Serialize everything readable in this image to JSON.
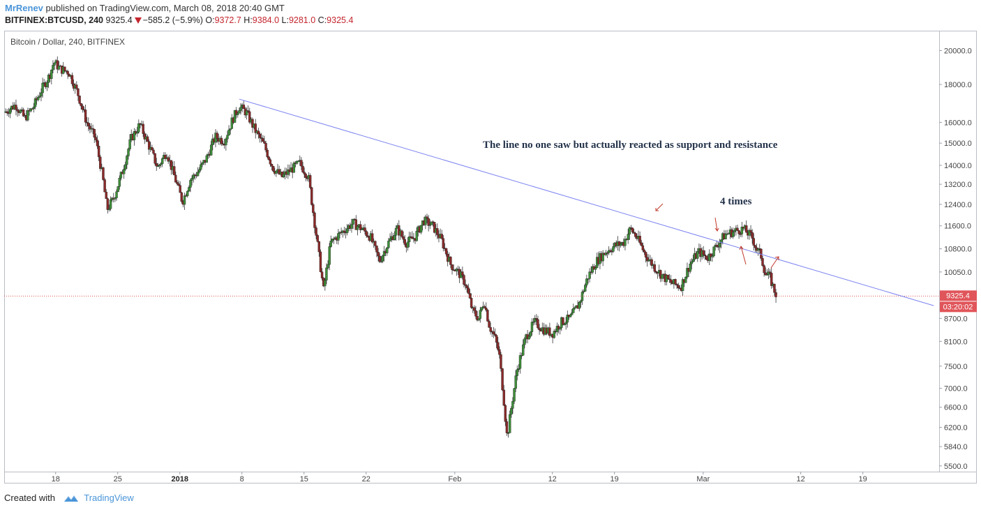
{
  "header": {
    "author": "MrRenev",
    "published_text": "published on TradingView.com, March 08, 2018 20:40 GMT",
    "symbol": "BITFINEX:BTCUSD, 240",
    "last": "9325.4",
    "change": "−585.2 (−5.9%)",
    "o_label": "O:",
    "o_value": "9372.7",
    "h_label": "H:",
    "h_value": "9384.0",
    "l_label": "L:",
    "l_value": "9281.0",
    "c_label": "C:",
    "c_value": "9325.4"
  },
  "footer": {
    "created_with": "Created with",
    "brand": "TradingView"
  },
  "colors": {
    "up_candle": "#3f8f3a",
    "down_candle": "#8b2a2a",
    "trend_line": "#7b83f0",
    "price_line": "#d9534f",
    "price_label_bg": "#e0555a",
    "arrow": "#c0392b",
    "author": "#4a95d9"
  },
  "chart_data": {
    "type": "candlestick",
    "series_title": "Bitcoin / Dollar, 240, BITFINEX",
    "y_scale": "log",
    "ylim": [
      5450,
      21000
    ],
    "y_ticks": [
      "20000.0",
      "18000.0",
      "16000.0",
      "15000.0",
      "14000.0",
      "13200.0",
      "12400.0",
      "11600.0",
      "10800.0",
      "10050.0",
      "8700.0",
      "8100.0",
      "7500.0",
      "7000.0",
      "6600.0",
      "6200.0",
      "5840.0",
      "5500.0"
    ],
    "x_ticks": [
      {
        "label": "18",
        "bold": false,
        "day": 18
      },
      {
        "label": "25",
        "bold": false,
        "day": 25
      },
      {
        "label": "2018",
        "bold": true,
        "day": 32
      },
      {
        "label": "8",
        "bold": false,
        "day": 39
      },
      {
        "label": "15",
        "bold": false,
        "day": 46
      },
      {
        "label": "22",
        "bold": false,
        "day": 53
      },
      {
        "label": "Feb",
        "bold": false,
        "day": 63
      },
      {
        "label": "12",
        "bold": false,
        "day": 74
      },
      {
        "label": "19",
        "bold": false,
        "day": 81
      },
      {
        "label": "Mar",
        "bold": false,
        "day": 91
      },
      {
        "label": "12",
        "bold": false,
        "day": 102
      },
      {
        "label": "19",
        "bold": false,
        "day": 109
      }
    ],
    "x_range_days": [
      12.2,
      117.6
    ],
    "price_path": [
      [
        12.2,
        16500
      ],
      [
        13.5,
        16900
      ],
      [
        14.5,
        16200
      ],
      [
        15.5,
        16800
      ],
      [
        16.5,
        17800
      ],
      [
        17.3,
        18500
      ],
      [
        17.8,
        19300
      ],
      [
        18.5,
        18900
      ],
      [
        19.5,
        18700
      ],
      [
        20.5,
        17500
      ],
      [
        21.5,
        16000
      ],
      [
        22.5,
        15200
      ],
      [
        23.3,
        13500
      ],
      [
        23.8,
        12200
      ],
      [
        24.5,
        12600
      ],
      [
        25.5,
        13700
      ],
      [
        26.5,
        15200
      ],
      [
        27.5,
        15900
      ],
      [
        28.5,
        14900
      ],
      [
        29.5,
        13900
      ],
      [
        30.5,
        14600
      ],
      [
        31.5,
        13400
      ],
      [
        32.3,
        12500
      ],
      [
        33.2,
        13400
      ],
      [
        34,
        13700
      ],
      [
        35,
        14300
      ],
      [
        36,
        15300
      ],
      [
        37,
        15100
      ],
      [
        38,
        16200
      ],
      [
        38.7,
        16800
      ],
      [
        39.5,
        16500
      ],
      [
        40.5,
        15600
      ],
      [
        41.5,
        14900
      ],
      [
        42.5,
        13900
      ],
      [
        43.5,
        13500
      ],
      [
        44.5,
        13800
      ],
      [
        45.5,
        14100
      ],
      [
        46.5,
        13500
      ],
      [
        47,
        12200
      ],
      [
        47.5,
        11000
      ],
      [
        48.2,
        9500
      ],
      [
        49,
        11000
      ],
      [
        50,
        11300
      ],
      [
        51.5,
        11700
      ],
      [
        52.5,
        11500
      ],
      [
        53.5,
        11200
      ],
      [
        54.5,
        10400
      ],
      [
        55.5,
        11000
      ],
      [
        56.5,
        11500
      ],
      [
        57.5,
        11000
      ],
      [
        58.5,
        11200
      ],
      [
        59.5,
        11800
      ],
      [
        60.5,
        11600
      ],
      [
        61.5,
        11100
      ],
      [
        62.5,
        10300
      ],
      [
        63.5,
        10000
      ],
      [
        64.2,
        9700
      ],
      [
        65,
        8900
      ],
      [
        65.7,
        8700
      ],
      [
        66.3,
        9200
      ],
      [
        66.9,
        8500
      ],
      [
        67.5,
        8200
      ],
      [
        68,
        7800
      ],
      [
        68.5,
        6800
      ],
      [
        68.9,
        6000
      ],
      [
        69.3,
        6500
      ],
      [
        70,
        7400
      ],
      [
        71,
        8200
      ],
      [
        72,
        8600
      ],
      [
        73,
        8400
      ],
      [
        74,
        8300
      ],
      [
        75,
        8600
      ],
      [
        76,
        8700
      ],
      [
        77,
        9100
      ],
      [
        78,
        9900
      ],
      [
        79,
        10400
      ],
      [
        80,
        10700
      ],
      [
        81,
        10900
      ],
      [
        82,
        11000
      ],
      [
        82.8,
        11500
      ],
      [
        83.5,
        11200
      ],
      [
        84.5,
        10600
      ],
      [
        85.5,
        10200
      ],
      [
        86.5,
        9900
      ],
      [
        87.5,
        9700
      ],
      [
        88.5,
        9600
      ],
      [
        89.5,
        10300
      ],
      [
        90.5,
        10700
      ],
      [
        91.5,
        10500
      ],
      [
        92.5,
        10900
      ],
      [
        93.5,
        11300
      ],
      [
        94.5,
        11400
      ],
      [
        95.5,
        11500
      ],
      [
        96.5,
        11200
      ],
      [
        97,
        10800
      ],
      [
        97.5,
        10600
      ],
      [
        98,
        10000
      ],
      [
        98.5,
        9900
      ],
      [
        99,
        9500
      ],
      [
        99.3,
        9325
      ]
    ],
    "trend_line": {
      "start": {
        "day": 38.7,
        "price": 17200
      },
      "end": {
        "day": 117.0,
        "price": 9050
      }
    },
    "current_price_label": "9325.4",
    "countdown_label": "03:20:02",
    "annotations": [
      {
        "text": "The line no one saw but actually reacted as  support and resistance"
      },
      {
        "text": "4 times"
      }
    ]
  }
}
